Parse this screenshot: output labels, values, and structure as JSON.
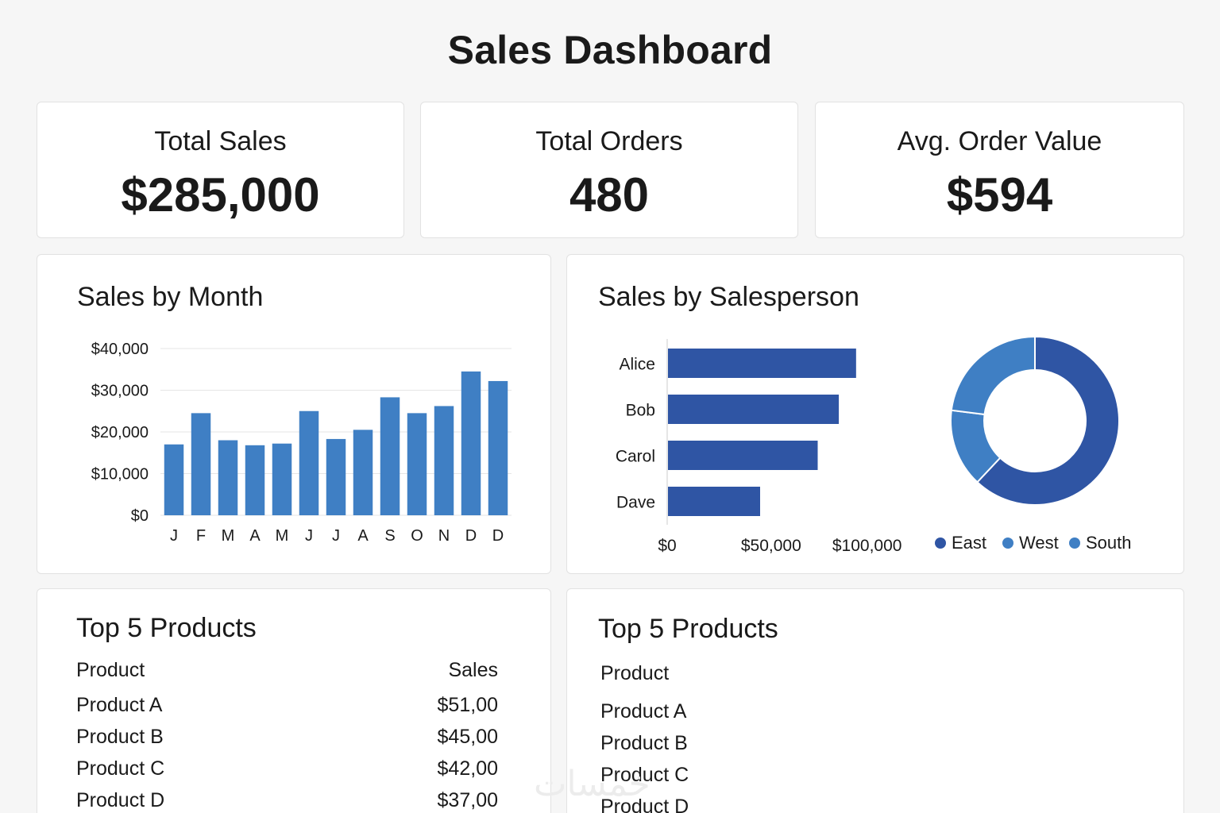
{
  "page": {
    "title": "Sales Dashboard"
  },
  "kpis": [
    {
      "label": "Total Sales",
      "value": "$285,000"
    },
    {
      "label": "Total Orders",
      "value": "480"
    },
    {
      "label": "Avg. Order Value",
      "value": "$594"
    }
  ],
  "colors": {
    "bar": "#3f7fc4",
    "hbar": "#2f55a4",
    "east": "#2f55a4",
    "west": "#3f7fc4",
    "south": "#3f7fc4",
    "grid": "#e6e6e6"
  },
  "monthly_chart": {
    "title": "Sales by Month",
    "chart_data": {
      "type": "bar",
      "categories": [
        "J",
        "F",
        "M",
        "A",
        "M",
        "J",
        "J",
        "A",
        "S",
        "O",
        "N",
        "D",
        "D"
      ],
      "values": [
        17000,
        24500,
        18000,
        16800,
        17200,
        25000,
        18300,
        20500,
        28300,
        24500,
        26200,
        34500,
        32200
      ],
      "ylim": [
        0,
        40000
      ],
      "ytick_labels": [
        "$0",
        "$10,000",
        "$20,000",
        "$30,000",
        "$40,000"
      ],
      "yticks": [
        0,
        10000,
        20000,
        30000,
        40000
      ],
      "grid": true
    }
  },
  "salesperson_chart": {
    "title": "Sales by Salesperson",
    "chart_data": {
      "type": "bar",
      "orientation": "horizontal",
      "categories": [
        "Alice",
        "Bob",
        "Carol",
        "Dave"
      ],
      "values": [
        98000,
        89000,
        78000,
        48000
      ],
      "xlim": [
        0,
        120000
      ],
      "xticks": [
        0,
        50000,
        100000
      ],
      "xtick_labels": [
        "$0",
        "$50,000",
        "$100,000"
      ]
    }
  },
  "region_chart": {
    "chart_data": {
      "type": "pie",
      "donut": true,
      "categories": [
        "East",
        "West",
        "South"
      ],
      "values": [
        62,
        15,
        23
      ]
    },
    "legend": [
      "East",
      "West",
      "South"
    ]
  },
  "products_left": {
    "title": "Top 5 Products",
    "headers": {
      "product": "Product",
      "sales": "Sales"
    },
    "rows": [
      {
        "product": "Product A",
        "sales": "$51,00"
      },
      {
        "product": "Product B",
        "sales": "$45,00"
      },
      {
        "product": "Product C",
        "sales": "$42,00"
      },
      {
        "product": "Product D",
        "sales": "$37,00"
      }
    ]
  },
  "products_right": {
    "title": "Top 5 Products",
    "headers": {
      "product": "Product"
    },
    "rows": [
      {
        "product": "Product A"
      },
      {
        "product": "Product B"
      },
      {
        "product": "Product C"
      },
      {
        "product": "Product D"
      }
    ]
  },
  "watermark": {
    "text": "خمسات"
  }
}
